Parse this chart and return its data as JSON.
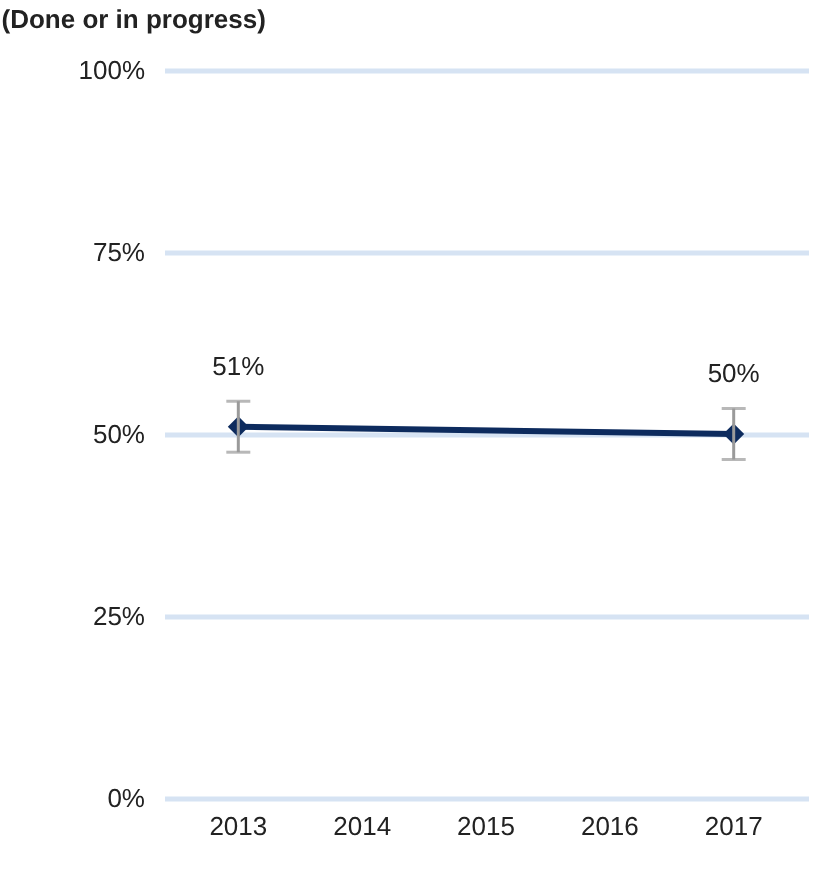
{
  "chart_data": {
    "type": "line",
    "title": "(Done or in progress)",
    "categories": [
      "2013",
      "2014",
      "2015",
      "2016",
      "2017"
    ],
    "series": [
      {
        "color": "#0d2b5e",
        "values": [
          51,
          null,
          null,
          null,
          50
        ],
        "errors": [
          3.5,
          null,
          null,
          null,
          3.5
        ]
      }
    ],
    "value_labels": [
      "51%",
      null,
      null,
      null,
      "50%"
    ],
    "ylim": [
      0,
      100
    ],
    "yticks": [
      {
        "value": 0,
        "label": "0%"
      },
      {
        "value": 25,
        "label": "25%"
      },
      {
        "value": 50,
        "label": "50%"
      },
      {
        "value": 75,
        "label": "75%"
      },
      {
        "value": 100,
        "label": "100%"
      }
    ],
    "grid": "y",
    "marker": "diamond",
    "line_style": "solid"
  }
}
